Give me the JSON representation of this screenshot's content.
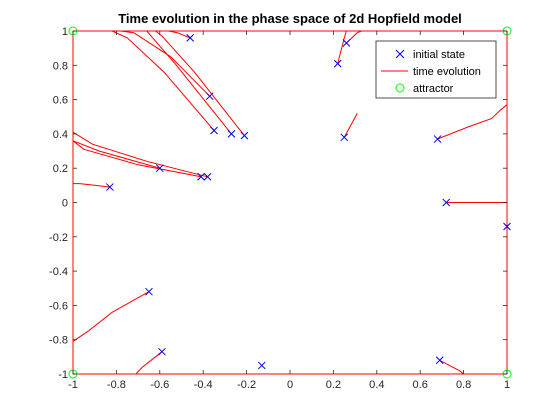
{
  "chart_data": {
    "type": "line",
    "title": "Time evolution in the phase space of 2d Hopfield model",
    "xlabel": "",
    "ylabel": "",
    "xlim": [
      -1,
      1
    ],
    "ylim": [
      -1,
      1
    ],
    "grid": false,
    "legend_position": "top-right",
    "xticks": [
      -1,
      -0.8,
      -0.6,
      -0.4,
      -0.2,
      0,
      0.2,
      0.4,
      0.6,
      0.8,
      1
    ],
    "yticks": [
      -1,
      -0.8,
      -0.6,
      -0.4,
      -0.2,
      0,
      0.2,
      0.4,
      0.6,
      0.8,
      1
    ],
    "xtick_labels": [
      "-1",
      "-0.8",
      "-0.6",
      "-0.4",
      "-0.2",
      "0",
      "0.2",
      "0.4",
      "0.6",
      "0.8",
      "1"
    ],
    "ytick_labels": [
      "-1",
      "-0.8",
      "-0.6",
      "-0.4",
      "-0.2",
      "0",
      "0.2",
      "0.4",
      "0.6",
      "0.8",
      "1"
    ],
    "legend": [
      {
        "label": "initial state",
        "marker": "x",
        "color": "#0000ff"
      },
      {
        "label": "time evolution",
        "marker": "line",
        "color": "#ff0000"
      },
      {
        "label": "attractor",
        "marker": "o",
        "color": "#00ff00"
      }
    ],
    "colors": {
      "initial": "#0000ff",
      "evolution": "#ff0000",
      "attractor": "#00ff00"
    },
    "initial_states": [
      [
        -0.46,
        0.96
      ],
      [
        -0.37,
        0.62
      ],
      [
        -0.35,
        0.42
      ],
      [
        -0.27,
        0.4
      ],
      [
        -0.21,
        0.39
      ],
      [
        0.22,
        0.81
      ],
      [
        0.26,
        0.93
      ],
      [
        0.25,
        0.38
      ],
      [
        0.68,
        0.37
      ],
      [
        -0.83,
        0.09
      ],
      [
        -0.6,
        0.2
      ],
      [
        -0.41,
        0.15
      ],
      [
        -0.38,
        0.15
      ],
      [
        0.72,
        0.0
      ],
      [
        1.0,
        -0.14
      ],
      [
        -0.65,
        -0.52
      ],
      [
        -0.59,
        -0.87
      ],
      [
        -0.13,
        -0.95
      ],
      [
        0.69,
        -0.92
      ]
    ],
    "trajectories": [
      [
        [
          -0.46,
          0.96
        ],
        [
          -0.52,
          0.99
        ],
        [
          -0.56,
          1.0
        ]
      ],
      [
        [
          -0.37,
          0.62
        ],
        [
          -0.55,
          0.85
        ],
        [
          -0.72,
          0.99
        ],
        [
          -0.78,
          1.0
        ]
      ],
      [
        [
          -0.35,
          0.42
        ],
        [
          -0.58,
          0.76
        ],
        [
          -0.75,
          0.96
        ],
        [
          -0.82,
          1.0
        ]
      ],
      [
        [
          -0.27,
          0.4
        ],
        [
          -0.53,
          0.81
        ],
        [
          -0.64,
          0.97
        ],
        [
          -0.66,
          1.0
        ]
      ],
      [
        [
          -0.21,
          0.39
        ],
        [
          -0.44,
          0.76
        ],
        [
          -0.59,
          0.97
        ],
        [
          -0.62,
          1.0
        ]
      ],
      [
        [
          0.22,
          0.81
        ],
        [
          0.25,
          0.96
        ],
        [
          0.26,
          1.0
        ]
      ],
      [
        [
          0.26,
          0.93
        ],
        [
          0.31,
          0.99
        ],
        [
          0.33,
          1.0
        ]
      ],
      [
        [
          0.25,
          0.38
        ],
        [
          0.31,
          0.52
        ]
      ],
      [
        [
          0.68,
          0.37
        ],
        [
          0.82,
          0.44
        ],
        [
          0.93,
          0.49
        ],
        [
          0.97,
          0.54
        ],
        [
          1.0,
          0.57
        ]
      ],
      [
        [
          -0.83,
          0.09
        ],
        [
          -0.9,
          0.1
        ],
        [
          -0.97,
          0.11
        ],
        [
          -1.0,
          0.11
        ]
      ],
      [
        [
          -0.6,
          0.2
        ],
        [
          -0.88,
          0.3
        ],
        [
          -1.0,
          0.36
        ]
      ],
      [
        [
          -0.41,
          0.15
        ],
        [
          -0.7,
          0.22
        ],
        [
          -0.95,
          0.31
        ],
        [
          -1.0,
          0.36
        ]
      ],
      [
        [
          -0.38,
          0.15
        ],
        [
          -0.66,
          0.24
        ],
        [
          -0.91,
          0.34
        ],
        [
          -1.0,
          0.41
        ]
      ],
      [
        [
          0.72,
          0.0
        ],
        [
          0.9,
          0.0
        ],
        [
          1.0,
          0.0
        ]
      ],
      [
        [
          -0.65,
          -0.52
        ],
        [
          -0.82,
          -0.64
        ],
        [
          -0.93,
          -0.75
        ],
        [
          -1.0,
          -0.81
        ]
      ],
      [
        [
          -0.59,
          -0.87
        ],
        [
          -0.68,
          -0.96
        ],
        [
          -0.71,
          -1.0
        ]
      ],
      [
        [
          0.69,
          -0.92
        ],
        [
          0.78,
          -0.98
        ],
        [
          0.8,
          -1.0
        ]
      ]
    ],
    "attractors": [
      [
        -1,
        1
      ],
      [
        1,
        1
      ],
      [
        -1,
        -1
      ],
      [
        1,
        -1
      ]
    ]
  }
}
